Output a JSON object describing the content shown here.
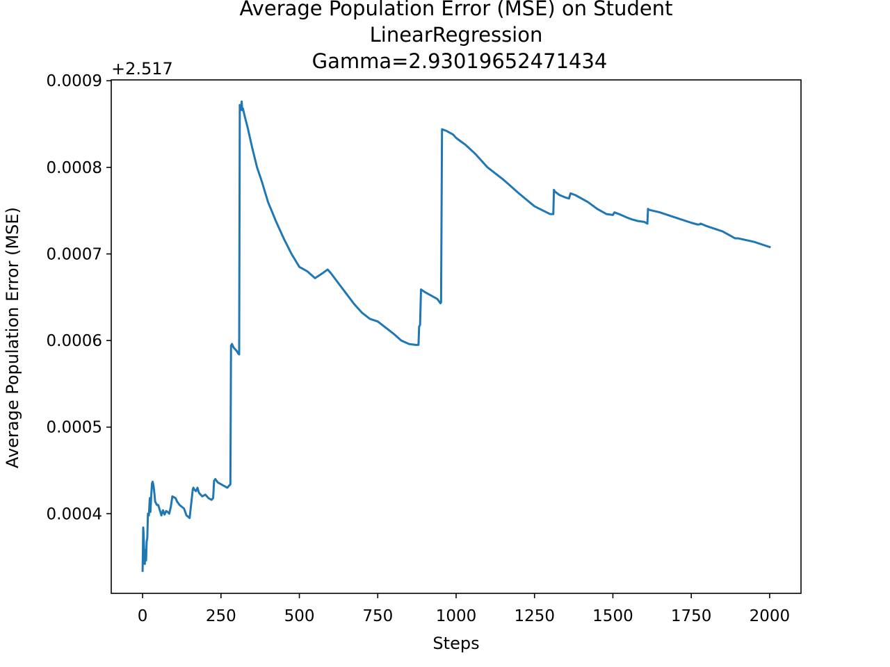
{
  "title_lines": [
    "Average Population Error (MSE) on Student",
    "LinearRegression",
    "Gamma=2.93019652471434"
  ],
  "chart_data": {
    "type": "line",
    "title": "Average Population Error (MSE) on Student\nLinearRegression\nGamma=2.93019652471434",
    "xlabel": "Steps",
    "ylabel": "Average Population Error (MSE)",
    "y_offset_label": "+2.517",
    "y_offset": 2.517,
    "xlim": [
      -100,
      2100
    ],
    "ylim": [
      0.000308,
      0.000901
    ],
    "x_ticks": [
      0,
      250,
      500,
      750,
      1000,
      1250,
      1500,
      1750,
      2000
    ],
    "x_tick_labels": [
      "0",
      "250",
      "500",
      "750",
      "1000",
      "1250",
      "1500",
      "1750",
      "2000"
    ],
    "y_ticks": [
      0.0004,
      0.0005,
      0.0006,
      0.0007,
      0.0008,
      0.0009
    ],
    "y_tick_labels": [
      "0.0004",
      "0.0005",
      "0.0006",
      "0.0007",
      "0.0008",
      "0.0009"
    ],
    "grid": false,
    "line_color": "#1f77b4",
    "series": [
      {
        "x": [
          0,
          2,
          3,
          5,
          7,
          9,
          11,
          13,
          15,
          17,
          20,
          23,
          25,
          28,
          30,
          32,
          35,
          38,
          40,
          43,
          46,
          50,
          55,
          60,
          65,
          70,
          75,
          80,
          85,
          90,
          95,
          100,
          105,
          110,
          118,
          125,
          132,
          140,
          150,
          160,
          162,
          165,
          170,
          175,
          180,
          190,
          200,
          210,
          220,
          225,
          228,
          232,
          240,
          250,
          260,
          270,
          280,
          282,
          285,
          290,
          300,
          305,
          308,
          310,
          312,
          314,
          316,
          318,
          320,
          325,
          335,
          350,
          365,
          380,
          400,
          425,
          450,
          475,
          500,
          525,
          550,
          575,
          590,
          600,
          625,
          650,
          675,
          700,
          725,
          750,
          775,
          800,
          825,
          850,
          870,
          880,
          882,
          885,
          888,
          900,
          920,
          940,
          950,
          952,
          955,
          970,
          990,
          1000,
          1015,
          1030,
          1060,
          1100,
          1150,
          1200,
          1250,
          1300,
          1310,
          1312,
          1315,
          1330,
          1350,
          1360,
          1365,
          1380,
          1420,
          1450,
          1480,
          1500,
          1505,
          1520,
          1545,
          1560,
          1580,
          1600,
          1610,
          1612,
          1615,
          1650,
          1700,
          1750,
          1760,
          1770,
          1775,
          1780,
          1800,
          1850,
          1880,
          1890,
          1900,
          1950,
          2000
        ],
        "y": [
          0.000334,
          0.000384,
          0.000378,
          0.000358,
          0.000342,
          0.000358,
          0.000346,
          0.000368,
          0.000372,
          0.0004,
          0.000398,
          0.000418,
          0.000402,
          0.000424,
          0.000435,
          0.000437,
          0.000432,
          0.000422,
          0.000414,
          0.000412,
          0.00041,
          0.00041,
          0.000404,
          0.000398,
          0.000404,
          0.000399,
          0.000403,
          0.000402,
          0.0004,
          0.000408,
          0.00042,
          0.000419,
          0.000418,
          0.000414,
          0.00041,
          0.000408,
          0.000406,
          0.000398,
          0.000395,
          0.000428,
          0.00043,
          0.000428,
          0.000426,
          0.00043,
          0.000424,
          0.00042,
          0.000422,
          0.000418,
          0.000416,
          0.000418,
          0.000438,
          0.00044,
          0.000436,
          0.000434,
          0.000432,
          0.00043,
          0.000434,
          0.000594,
          0.000596,
          0.000592,
          0.000588,
          0.000585,
          0.000584,
          0.000872,
          0.000866,
          0.000868,
          0.000876,
          0.000866,
          0.000868,
          0.00086,
          0.000846,
          0.000822,
          0.0008,
          0.000784,
          0.00076,
          0.000738,
          0.000718,
          0.0007,
          0.000685,
          0.00068,
          0.000672,
          0.000678,
          0.000682,
          0.000678,
          0.000666,
          0.000654,
          0.000642,
          0.000632,
          0.000625,
          0.000622,
          0.000615,
          0.000608,
          0.0006,
          0.000596,
          0.000595,
          0.000595,
          0.000616,
          0.000618,
          0.000659,
          0.000656,
          0.000652,
          0.000648,
          0.000643,
          0.000644,
          0.000844,
          0.000842,
          0.000838,
          0.000834,
          0.00083,
          0.000826,
          0.000816,
          0.0008,
          0.000786,
          0.00077,
          0.000755,
          0.000746,
          0.000746,
          0.000774,
          0.000772,
          0.000768,
          0.000765,
          0.000764,
          0.00077,
          0.000768,
          0.00076,
          0.000752,
          0.000746,
          0.000745,
          0.000748,
          0.000746,
          0.000742,
          0.00074,
          0.000738,
          0.000737,
          0.000735,
          0.000752,
          0.000751,
          0.000748,
          0.000742,
          0.000736,
          0.000735,
          0.000734,
          0.000734,
          0.000735,
          0.000732,
          0.000726,
          0.00072,
          0.000718,
          0.000718,
          0.000714,
          0.000708
        ]
      }
    ]
  }
}
